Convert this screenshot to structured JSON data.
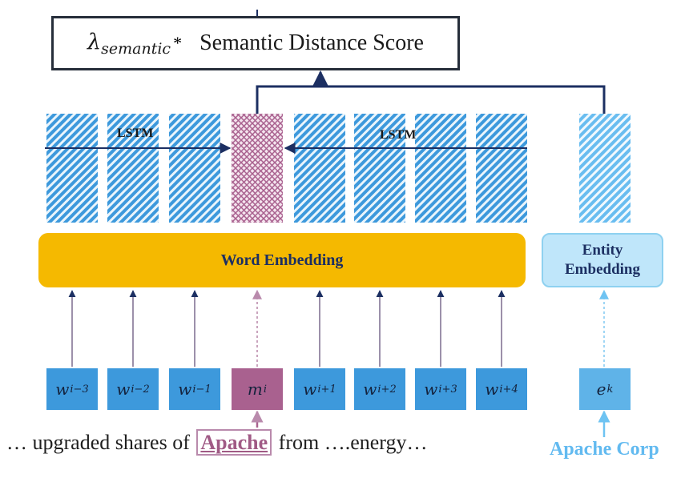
{
  "score": {
    "lambda_symbol": "λ",
    "lambda_subscript": "semantic",
    "star": "*",
    "title": "Semantic Distance Score"
  },
  "lstm": {
    "left_label": "LSTM",
    "right_label": "LSTM"
  },
  "word_embedding": {
    "label": "Word  Embedding"
  },
  "entity_embedding": {
    "line1": "Entity",
    "line2": "Embedding"
  },
  "tokens": [
    {
      "base": "w",
      "sub": "i−3",
      "kind": "context"
    },
    {
      "base": "w",
      "sub": "i−2",
      "kind": "context"
    },
    {
      "base": "w",
      "sub": "i−1",
      "kind": "context"
    },
    {
      "base": "m",
      "sub": "i",
      "kind": "mention"
    },
    {
      "base": "w",
      "sub": "i+1",
      "kind": "context"
    },
    {
      "base": "w",
      "sub": "i+2",
      "kind": "context"
    },
    {
      "base": "w",
      "sub": "i+3",
      "kind": "context"
    },
    {
      "base": "w",
      "sub": "i+4",
      "kind": "context"
    }
  ],
  "entity_token": {
    "base": "e",
    "sub": "k"
  },
  "sentence": {
    "before": "… upgraded shares of ",
    "mention": "Apache",
    "after": " from ….energy…"
  },
  "entity_name": "Apache Corp",
  "colors": {
    "lstm_cell": "#3d99dc",
    "mention_cell": "#a9618f",
    "entity_cell": "#5fb3e8",
    "word_embedding": "#f5b900",
    "entity_embedding": "#bfe6fa",
    "score_border": "#262e3a"
  }
}
